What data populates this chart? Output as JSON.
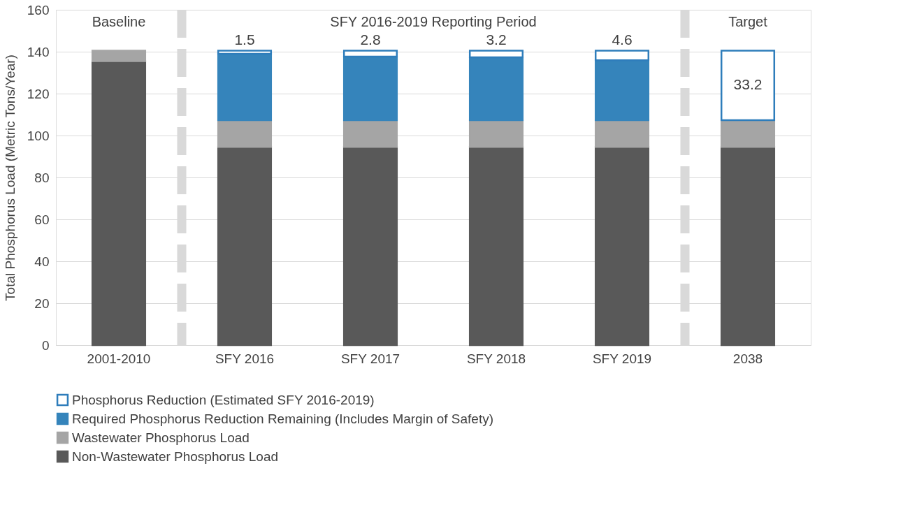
{
  "chart_data": {
    "type": "bar",
    "stacked": true,
    "ylabel": "Total Phosphorus Load (Metric Tons/Year)",
    "categories": [
      "2001-2010",
      "SFY 2016",
      "SFY 2017",
      "SFY 2018",
      "SFY 2019",
      "2038"
    ],
    "series": [
      {
        "name": "Non-Wastewater Phosphorus Load",
        "color": "#595959",
        "values": [
          135.5,
          94.6,
          94.6,
          94.6,
          94.6,
          94.6
        ]
      },
      {
        "name": "Wastewater Phosphorus Load",
        "color": "#a5a5a5",
        "values": [
          5.0,
          12.7,
          12.7,
          12.7,
          12.7,
          12.7
        ]
      },
      {
        "name": "Required Phosphorus Reduction Remaining (Includes Margin of Safety)",
        "color": "#3584bb",
        "values": [
          null,
          31.7,
          30.4,
          30.0,
          28.6,
          null
        ]
      },
      {
        "name": "Phosphorus Reduction (Estimated SFY 2016-2019)",
        "color": "#ffffff",
        "values": [
          null,
          1.5,
          2.8,
          3.2,
          4.6,
          33.2
        ],
        "value_labels": [
          null,
          "1.5",
          "2.8",
          "3.2",
          "4.6",
          "33.2"
        ]
      }
    ],
    "ylim": [
      0,
      160
    ],
    "yticks": [
      0,
      20,
      40,
      60,
      80,
      100,
      120,
      140,
      160
    ],
    "grid": "y",
    "legend": "bottom",
    "annotations": [
      "Baseline",
      "SFY 2016-2019 Reporting Period",
      "Target"
    ]
  }
}
